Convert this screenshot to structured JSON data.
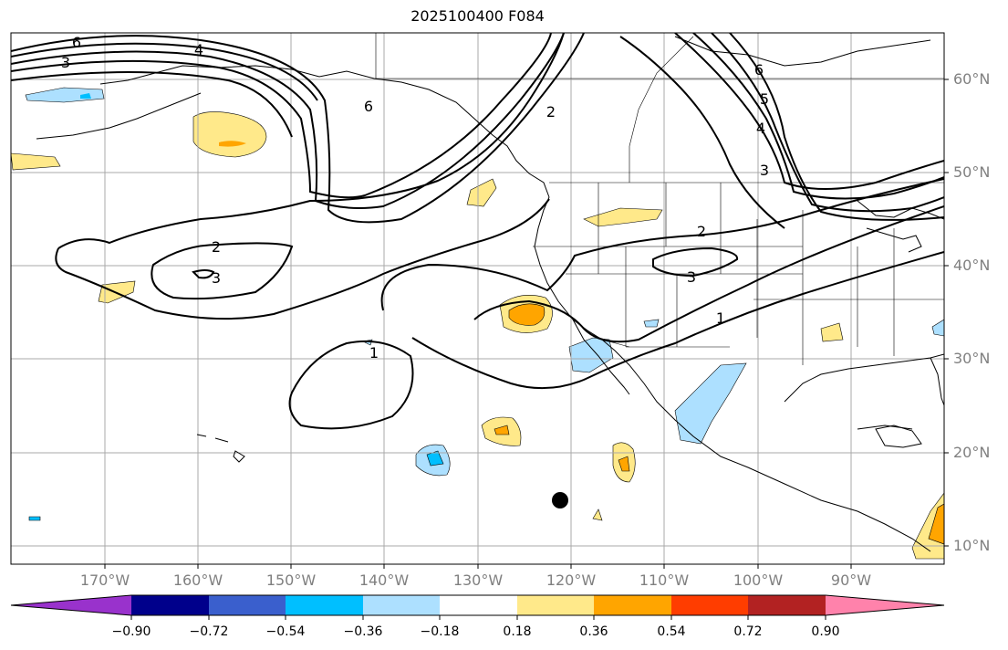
{
  "title": "2025100400 F084",
  "lat_labels": [
    "60°N",
    "50°N",
    "40°N",
    "30°N",
    "20°N",
    "10°N"
  ],
  "lon_labels": [
    "170°W",
    "160°W",
    "150°W",
    "140°W",
    "130°W",
    "120°W",
    "110°W",
    "100°W",
    "90°W"
  ],
  "colorbar": {
    "ticks": [
      "−0.90",
      "−0.72",
      "−0.54",
      "−0.36",
      "−0.18",
      "0.18",
      "0.36",
      "0.54",
      "0.72",
      "0.90"
    ],
    "colors": [
      "#9932cc",
      "#00008b",
      "#3a5fcd",
      "#00bfff",
      "#ade0ff",
      "#ffffff",
      "#ffe98a",
      "#ffa500",
      "#ff3d00",
      "#b22222",
      "#ff82ab"
    ]
  },
  "contour_labels": [
    "6",
    "3",
    "4",
    "6",
    "2",
    "2",
    "3",
    "2",
    "3",
    "1",
    "1",
    "6",
    "5",
    "4",
    "3"
  ],
  "marker": "storm-position"
}
